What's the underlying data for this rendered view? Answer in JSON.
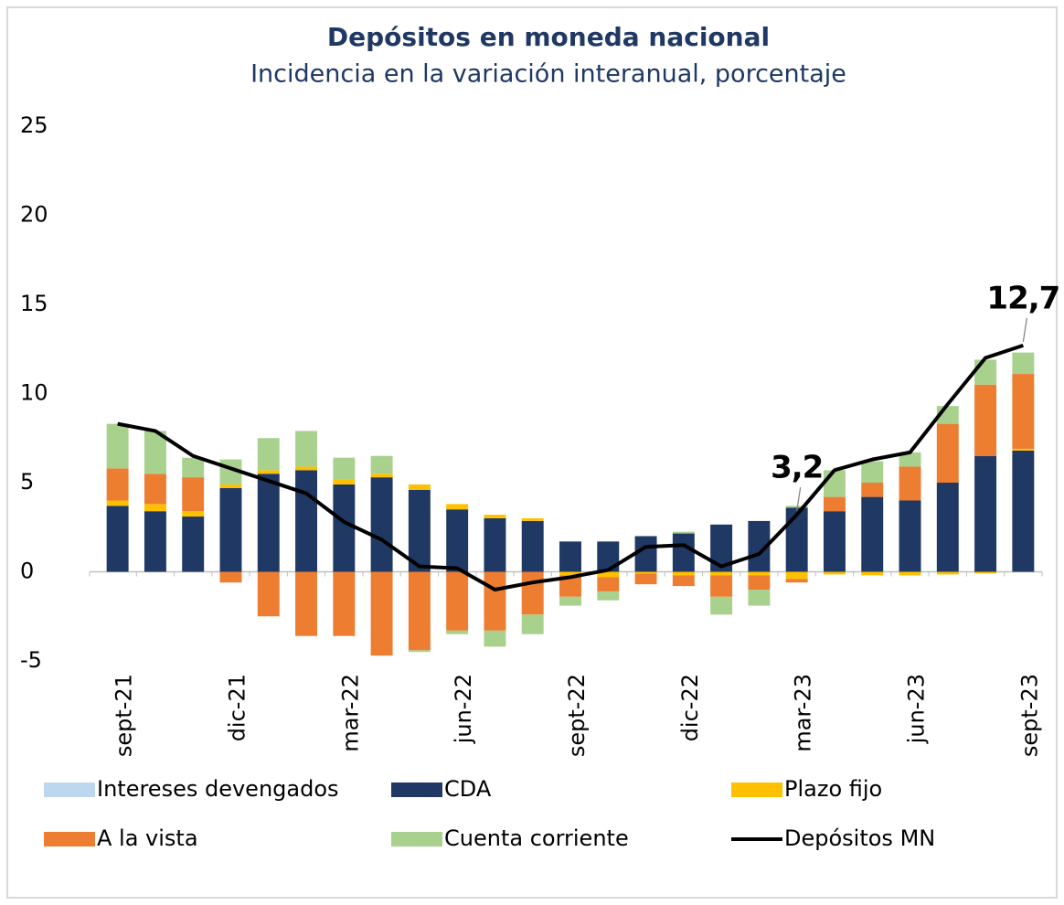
{
  "chart_data": {
    "type": "bar",
    "stacked": true,
    "title": "Depósitos en moneda nacional",
    "subtitle": "Incidencia en la variación interanual, porcentaje",
    "categories": [
      "sept-21",
      null,
      null,
      "dic-21",
      null,
      null,
      "mar-22",
      null,
      null,
      "jun-22",
      null,
      null,
      "sept-22",
      null,
      null,
      "dic-22",
      null,
      null,
      "mar-23",
      null,
      null,
      "jun-23",
      null,
      null,
      "sept-23"
    ],
    "ylim": [
      -5,
      25
    ],
    "yticks": [
      -5,
      0,
      5,
      10,
      15,
      20,
      25
    ],
    "series": [
      {
        "name": "Intereses devengados",
        "color": "#bdd7ee",
        "values": [
          0,
          0,
          0,
          0,
          0,
          0,
          0,
          0,
          0,
          0,
          0,
          0,
          0,
          0,
          0,
          0,
          0,
          0,
          0,
          0,
          0,
          0,
          0,
          0,
          0
        ]
      },
      {
        "name": "CDA",
        "color": "#203864",
        "values": [
          3.7,
          3.4,
          3.1,
          4.7,
          5.5,
          5.7,
          4.9,
          5.3,
          4.6,
          3.5,
          3.0,
          2.85,
          1.7,
          1.7,
          2.0,
          2.15,
          2.65,
          2.85,
          3.6,
          3.4,
          4.2,
          4.0,
          5.0,
          6.5,
          6.8
        ]
      },
      {
        "name": "Plazo fijo",
        "color": "#ffc000",
        "values": [
          0.3,
          0.4,
          0.3,
          0.2,
          0.2,
          0.2,
          0.3,
          0.2,
          0.3,
          0.3,
          0.2,
          0.15,
          -0.2,
          -0.3,
          -0.1,
          -0.2,
          -0.2,
          -0.2,
          -0.4,
          -0.15,
          -0.2,
          -0.2,
          -0.15,
          -0.1,
          0.1
        ]
      },
      {
        "name": "A la vista",
        "color": "#ed7d31",
        "values": [
          1.8,
          1.7,
          1.9,
          -0.6,
          -2.5,
          -3.6,
          -3.6,
          -4.7,
          -4.4,
          -3.3,
          -3.3,
          -2.4,
          -1.2,
          -0.8,
          -0.6,
          -0.6,
          -1.2,
          -0.8,
          -0.2,
          0.8,
          0.8,
          1.9,
          3.3,
          4.0,
          4.2
        ]
      },
      {
        "name": "Cuenta corriente",
        "color": "#a9d18e",
        "values": [
          2.5,
          2.4,
          1.1,
          1.4,
          1.8,
          2.0,
          1.2,
          1.0,
          -0.1,
          -0.2,
          -0.9,
          -1.1,
          -0.5,
          -0.5,
          0,
          0.1,
          -1.0,
          -0.9,
          0.1,
          1.5,
          1.2,
          0.8,
          1.0,
          1.4,
          1.2
        ]
      },
      {
        "name": "Depósitos MN",
        "color": "#000000",
        "type": "line",
        "values": [
          8.3,
          7.9,
          6.5,
          5.8,
          5.1,
          4.4,
          2.8,
          1.8,
          0.3,
          0.2,
          -1.0,
          -0.6,
          -0.3,
          0.1,
          1.4,
          1.5,
          0.3,
          1.0,
          3.2,
          5.7,
          6.3,
          6.7,
          9.4,
          12.0,
          12.7
        ],
        "value_labels": [
          null,
          null,
          null,
          null,
          null,
          null,
          null,
          null,
          null,
          null,
          null,
          null,
          null,
          null,
          null,
          null,
          null,
          null,
          "3,2",
          null,
          null,
          null,
          null,
          null,
          "12,7"
        ]
      }
    ]
  }
}
